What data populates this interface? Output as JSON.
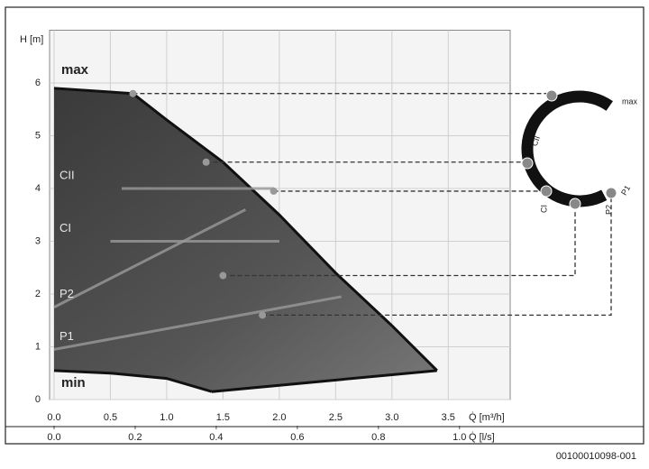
{
  "chart_data": {
    "type": "area",
    "y_label": "H [m]",
    "x_label": "Q̇ [m³/h]",
    "x2_label": "Q̇ [l/s]",
    "xlim": [
      -0.04,
      4.05
    ],
    "ylim": [
      0,
      7
    ],
    "x2lim": [
      -0.0111,
      1.125
    ],
    "xticks": [
      {
        "value": 0,
        "label": "0.0"
      },
      0.5,
      {
        "value": 1,
        "label": "1.0"
      },
      1.5,
      {
        "value": 2,
        "label": "2.0"
      },
      2.5,
      {
        "value": 3,
        "label": "3.0"
      },
      3.5
    ],
    "x2ticks": [
      {
        "value": 0,
        "label": "0.0"
      },
      0.2,
      0.4,
      0.6,
      0.8,
      {
        "value": 1,
        "label": "1.0"
      }
    ],
    "yticks": [
      0,
      1,
      2,
      3,
      4,
      5,
      6
    ],
    "grid": true,
    "color": "#2a2a2a",
    "series": [
      {
        "name": "max",
        "x": [
          0,
          0.7,
          1.0,
          1.5,
          2.0,
          2.5,
          3.0,
          3.4
        ],
        "values": [
          5.9,
          5.8,
          5.3,
          4.5,
          3.5,
          2.4,
          1.4,
          0.55
        ]
      },
      {
        "x": [
          1.4,
          3.4
        ],
        "values": [
          0.15,
          0.55
        ]
      },
      {
        "name": "min",
        "x": [
          0,
          0.5,
          1.0,
          1.4
        ],
        "values": [
          0.55,
          0.5,
          0.4,
          0.15
        ]
      }
    ],
    "control_lines": [
      {
        "name": "CII",
        "x": [
          0.6,
          1.95
        ],
        "values": [
          4.0,
          4.0
        ]
      },
      {
        "name": "CI",
        "x": [
          0.5,
          2.0
        ],
        "values": [
          3.0,
          3.0
        ]
      },
      {
        "name": "P2",
        "x": [
          0,
          1.7
        ],
        "values": [
          1.75,
          3.6
        ]
      },
      {
        "name": "P1",
        "x": [
          0,
          2.55
        ],
        "values": [
          0.95,
          1.95
        ]
      }
    ],
    "reference_points": [
      {
        "x": 0.7,
        "y": 5.8
      },
      {
        "x": 1.35,
        "y": 4.5
      },
      {
        "x": 1.95,
        "y": 3.95
      },
      {
        "x": 1.5,
        "y": 2.35
      },
      {
        "x": 1.85,
        "y": 1.6
      }
    ]
  },
  "dial_labels": [
    "max",
    "CII",
    "CI",
    "P2",
    "P1"
  ],
  "figure_id": "00100010098-001"
}
